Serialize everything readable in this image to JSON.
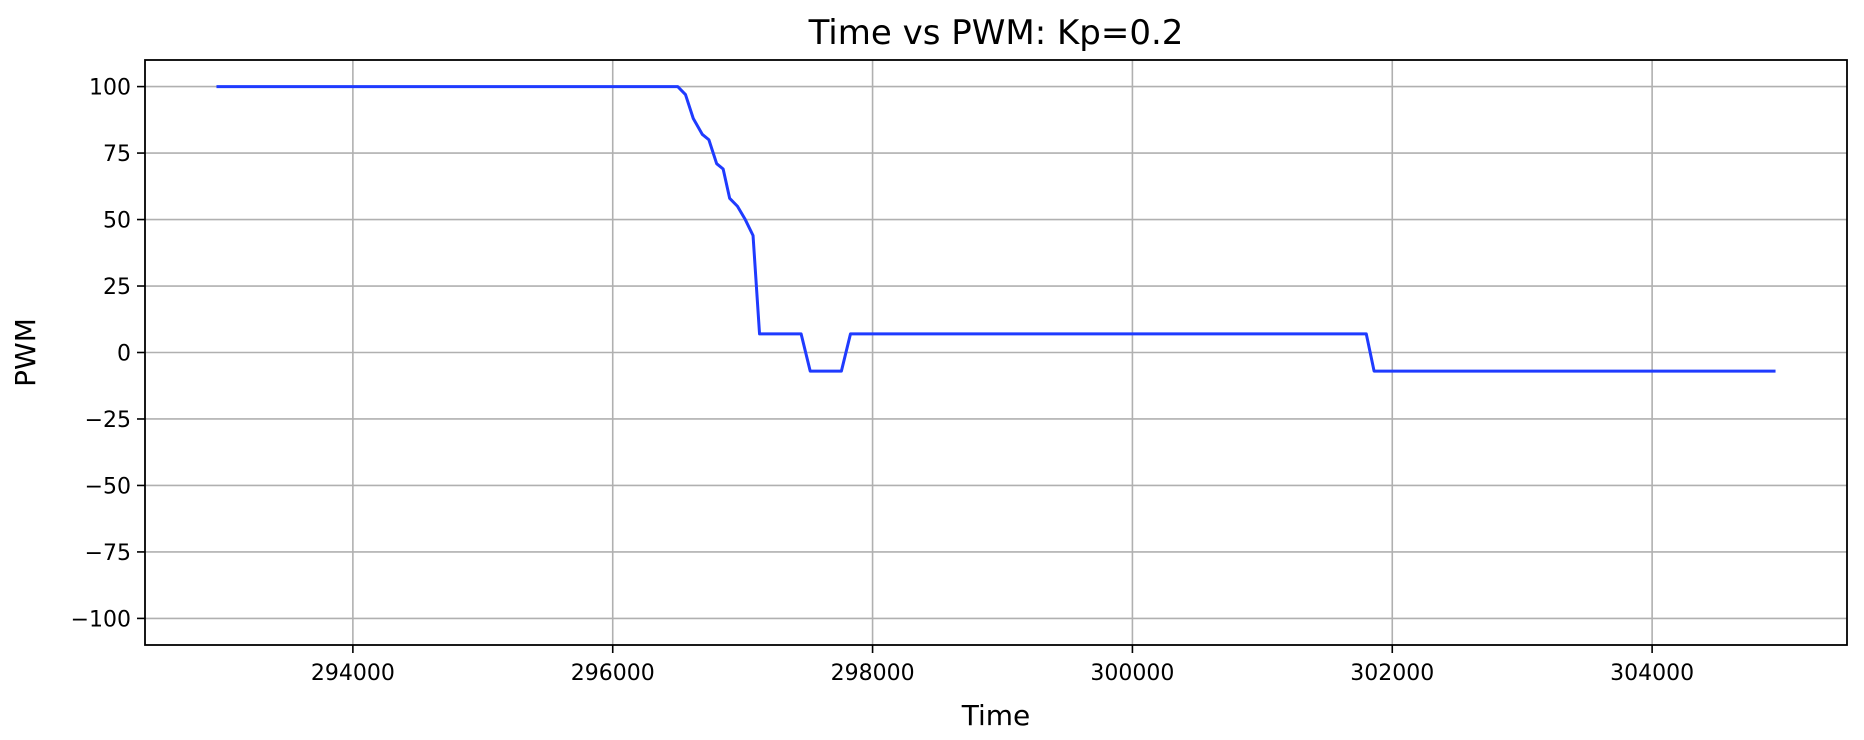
{
  "chart_data": {
    "type": "line",
    "title": "Time vs PWM: Kp=0.2",
    "xlabel": "Time",
    "ylabel": "PWM",
    "xlim": [
      292400,
      305500
    ],
    "ylim": [
      -110,
      110
    ],
    "grid": true,
    "x_ticks": [
      294000,
      296000,
      298000,
      300000,
      302000,
      304000
    ],
    "x_tick_labels": [
      "294000",
      "296000",
      "298000",
      "300000",
      "302000",
      "304000"
    ],
    "y_ticks": [
      100,
      75,
      50,
      25,
      0,
      -25,
      -50,
      -75,
      -100
    ],
    "y_tick_labels": [
      "100",
      "75",
      "50",
      "25",
      "0",
      "−25",
      "−50",
      "−75",
      "−100"
    ],
    "series": [
      {
        "color": "#1f3bff",
        "x": [
          292950,
          296500,
          296560,
          296620,
          296690,
          296740,
          296800,
          296850,
          296900,
          296960,
          297020,
          297080,
          297130,
          297450,
          297520,
          297760,
          297830,
          301800,
          301860,
          304950
        ],
        "y": [
          100,
          100,
          97,
          88,
          82,
          80,
          71,
          69,
          58,
          55,
          50,
          44,
          7,
          7,
          -7,
          -7,
          7,
          7,
          -7,
          -7
        ]
      }
    ]
  }
}
